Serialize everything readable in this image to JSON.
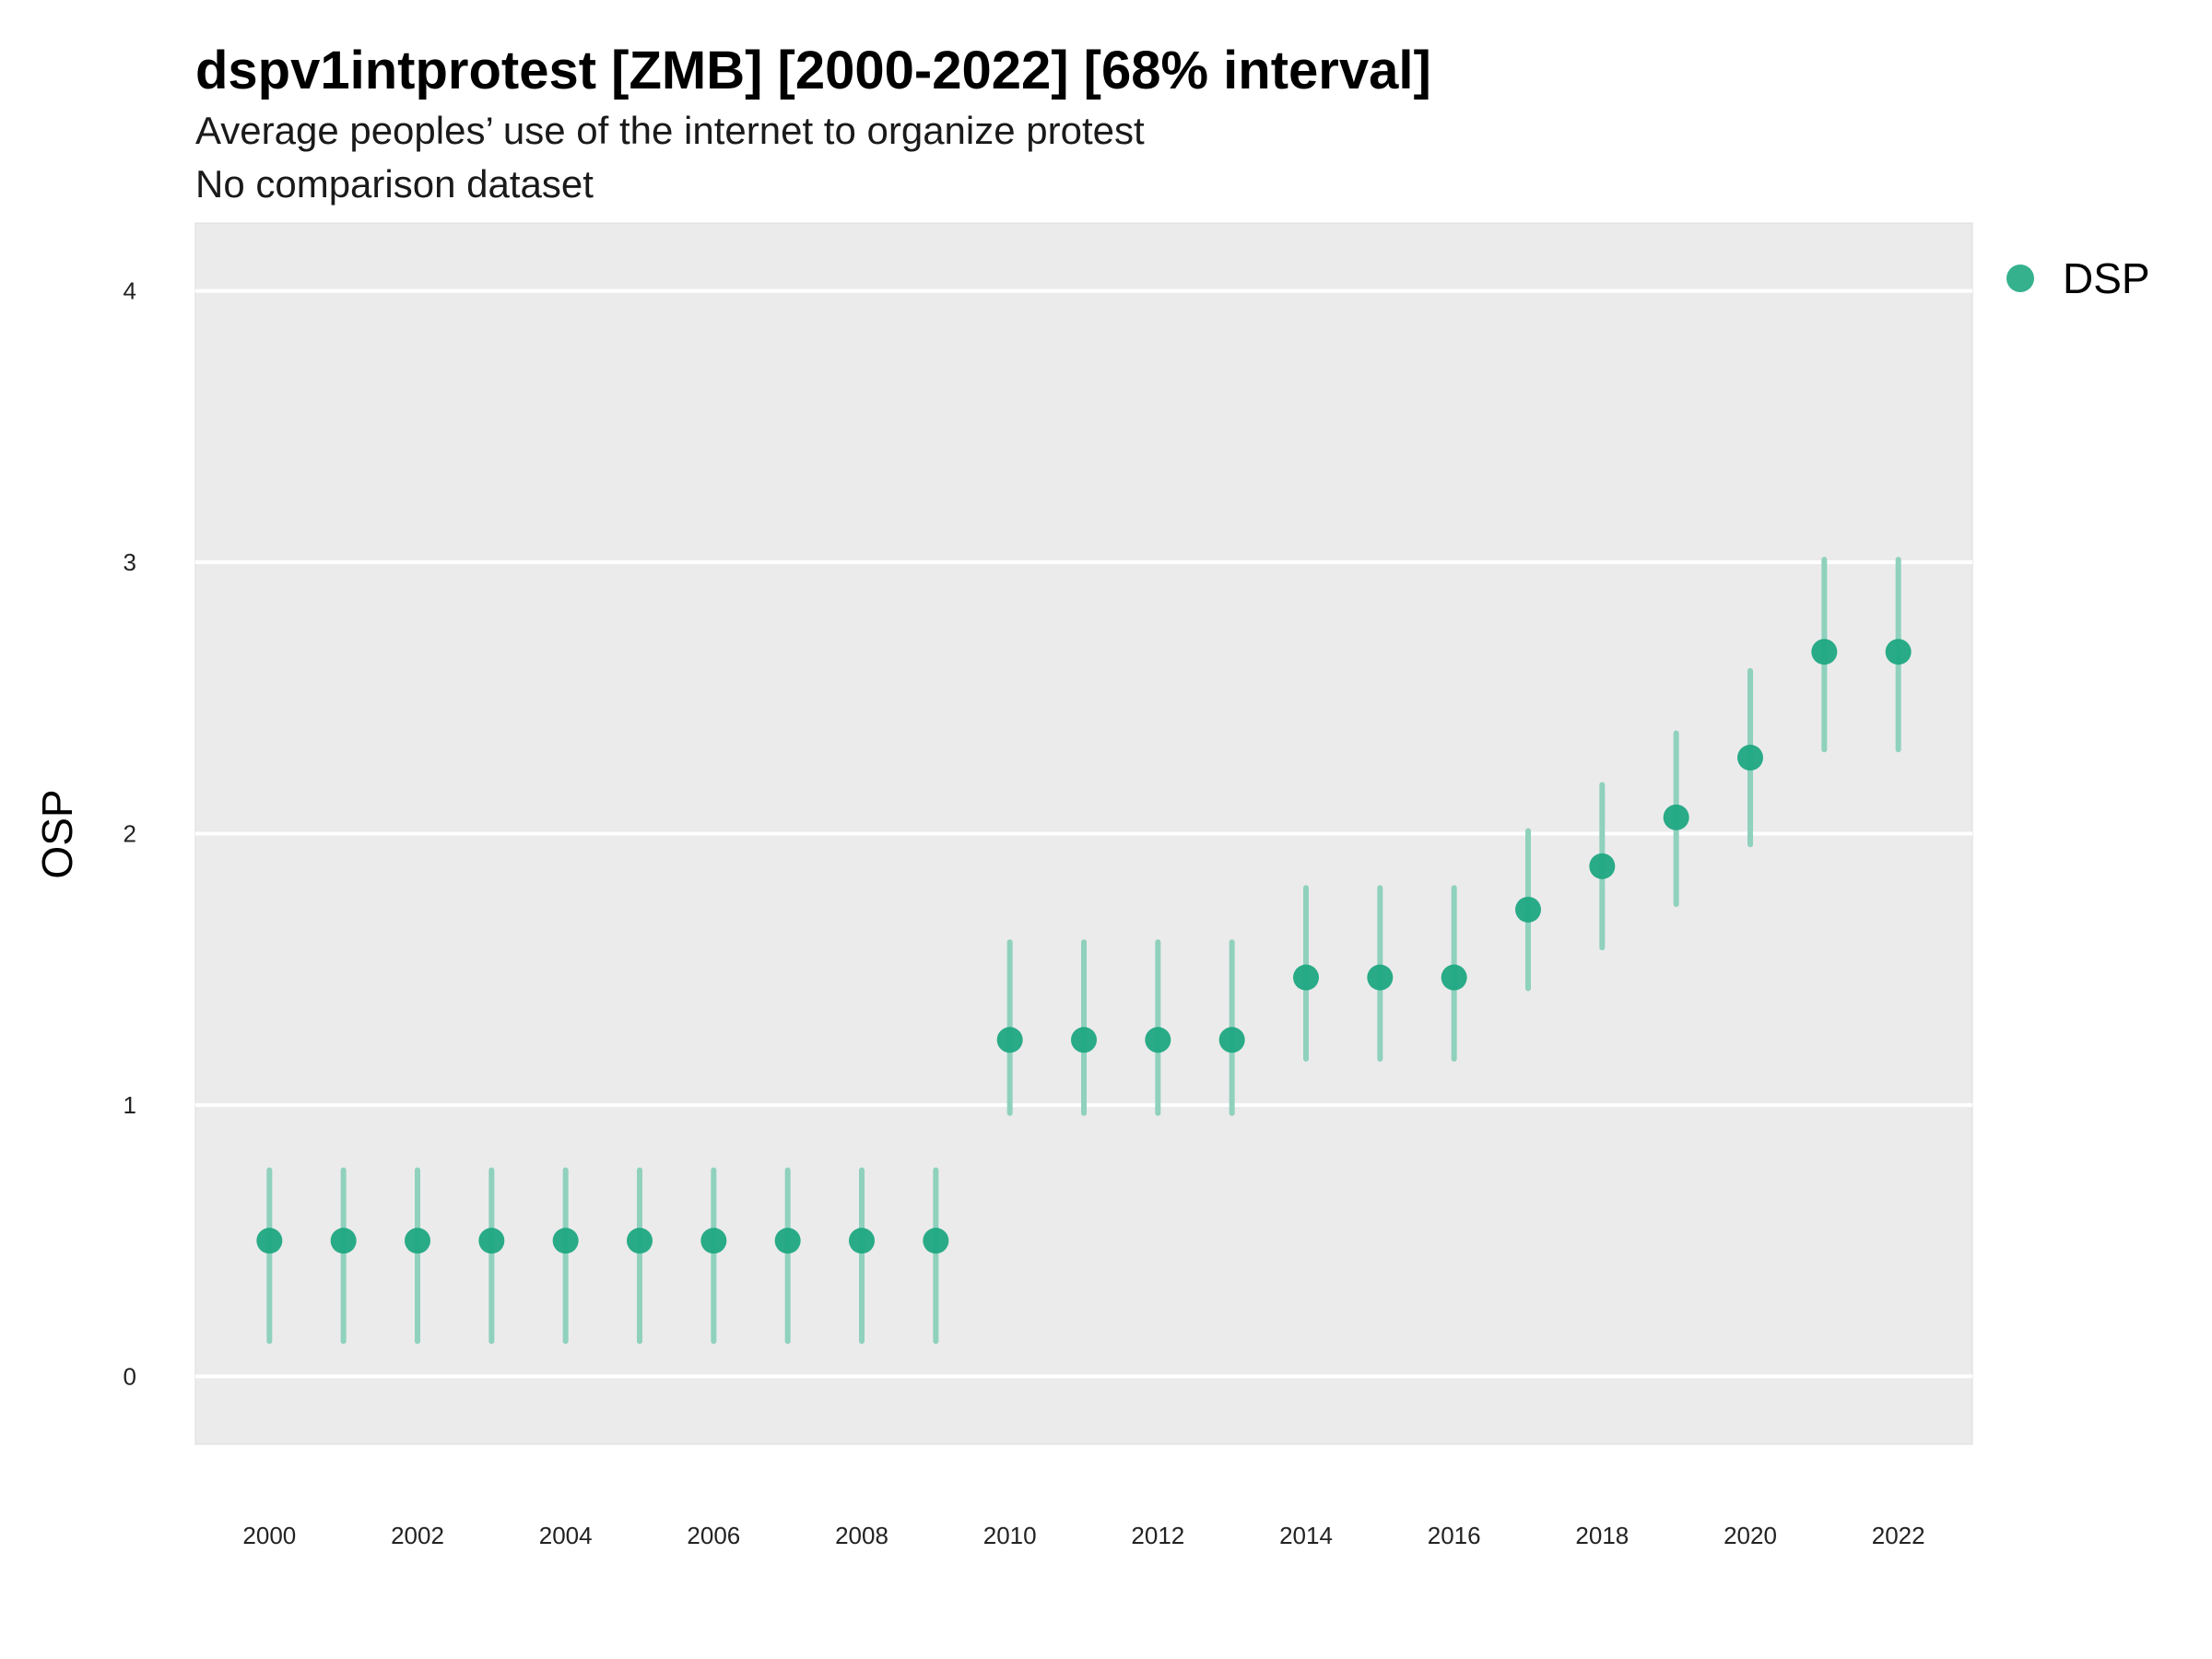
{
  "chart_data": {
    "type": "scatter",
    "title": "dspv1intprotest [ZMB] [2000-2022] [68% interval]",
    "subtitle_lines": [
      "Average peoples’ use of the internet to organize protest",
      "No comparison dataset"
    ],
    "xlabel": "",
    "ylabel": "OSP",
    "xlim": [
      1999,
      2023
    ],
    "ylim": [
      -0.25,
      4.25
    ],
    "x_ticks": [
      2000,
      2002,
      2004,
      2006,
      2008,
      2010,
      2012,
      2014,
      2016,
      2018,
      2020,
      2022
    ],
    "y_ticks": [
      0,
      1,
      2,
      3,
      4
    ],
    "grid": true,
    "legend_position": "top-right",
    "colors": {
      "point": "#1fa882",
      "interval": "#8fd1bd",
      "panel": "#ebebeb",
      "grid": "#ffffff"
    },
    "series": [
      {
        "name": "DSP",
        "x": [
          2000,
          2001,
          2002,
          2003,
          2004,
          2005,
          2006,
          2007,
          2008,
          2009,
          2010,
          2011,
          2012,
          2013,
          2014,
          2015,
          2016,
          2017,
          2018,
          2019,
          2020,
          2021,
          2022
        ],
        "y": [
          0.5,
          0.5,
          0.5,
          0.5,
          0.5,
          0.5,
          0.5,
          0.5,
          0.5,
          0.5,
          1.24,
          1.24,
          1.24,
          1.24,
          1.47,
          1.47,
          1.47,
          1.72,
          1.88,
          2.06,
          2.28,
          2.67,
          2.67
        ],
        "lower": [
          0.13,
          0.13,
          0.13,
          0.13,
          0.13,
          0.13,
          0.13,
          0.13,
          0.13,
          0.13,
          0.97,
          0.97,
          0.97,
          0.97,
          1.17,
          1.17,
          1.17,
          1.43,
          1.58,
          1.74,
          1.96,
          2.31,
          2.31
        ],
        "upper": [
          0.76,
          0.76,
          0.76,
          0.76,
          0.76,
          0.76,
          0.76,
          0.76,
          0.76,
          0.76,
          1.6,
          1.6,
          1.6,
          1.6,
          1.8,
          1.8,
          1.8,
          2.01,
          2.18,
          2.37,
          2.6,
          3.01,
          3.01
        ]
      }
    ]
  }
}
